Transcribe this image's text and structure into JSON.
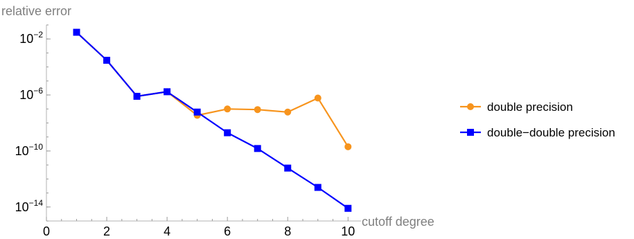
{
  "chart_data": {
    "type": "line",
    "title": "",
    "xlabel": "cutoff degree",
    "ylabel": "relative error",
    "x_scale": "linear",
    "y_scale": "log",
    "xlim": [
      0,
      10.2
    ],
    "ylim": [
      1e-15,
      0.1
    ],
    "x_ticks": [
      0,
      2,
      4,
      6,
      8,
      10
    ],
    "x_tick_labels": [
      "0",
      "2",
      "4",
      "6",
      "8",
      "10"
    ],
    "y_ticks": [
      0.01,
      1e-06,
      1e-10,
      1e-14
    ],
    "y_tick_labels": [
      {
        "base": "10",
        "exp": "−2"
      },
      {
        "base": "10",
        "exp": "−6"
      },
      {
        "base": "10",
        "exp": "−10"
      },
      {
        "base": "10",
        "exp": "−14"
      }
    ],
    "legend_position": "right",
    "grid": false,
    "series": [
      {
        "name": "double precision",
        "color": "#f7941d",
        "marker": "circle",
        "x": [
          1,
          2,
          3,
          4,
          5,
          6,
          7,
          8,
          9,
          10
        ],
        "y": [
          0.03,
          0.0003,
          8e-07,
          1.7e-06,
          3.5e-08,
          1e-07,
          9e-08,
          6e-08,
          6e-07,
          2e-10
        ]
      },
      {
        "name": "double−double precision",
        "color": "#0000ff",
        "marker": "square",
        "x": [
          1,
          2,
          3,
          4,
          5,
          6,
          7,
          8,
          9,
          10
        ],
        "y": [
          0.03,
          0.0003,
          8e-07,
          1.7e-06,
          6e-08,
          2e-09,
          1.5e-10,
          6e-12,
          2.5e-13,
          8e-15
        ]
      }
    ]
  }
}
